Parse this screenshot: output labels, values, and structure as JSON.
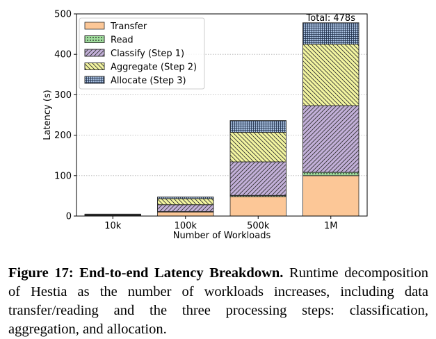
{
  "chart_data": {
    "type": "bar",
    "stacked": true,
    "categories": [
      "10k",
      "100k",
      "500k",
      "1M"
    ],
    "series": [
      {
        "name": "Transfer",
        "color": "#fcc797",
        "hatch": "none",
        "values": [
          1,
          10,
          48,
          100
        ]
      },
      {
        "name": "Read",
        "color": "#9fdc9c",
        "hatch": "dots",
        "values": [
          0.3,
          1,
          3,
          8
        ]
      },
      {
        "name": "Classify (Step 1)",
        "color": "#c3b0d9",
        "hatch": "diagonal",
        "values": [
          1.5,
          17,
          83,
          165
        ]
      },
      {
        "name": "Aggregate (Step 2)",
        "color": "#f3f5a0",
        "hatch": "backdiagonal",
        "values": [
          1.2,
          15,
          73,
          152
        ]
      },
      {
        "name": "Allocate (Step 3)",
        "color": "#a8c0e0",
        "hatch": "grid",
        "values": [
          0.8,
          4,
          29,
          53
        ]
      }
    ],
    "xlabel": "Number of Workloads",
    "ylabel": "Latency (s)",
    "ylim": [
      0,
      500
    ],
    "yticks": [
      0,
      100,
      200,
      300,
      400,
      500
    ],
    "grid": "horizontal dotted",
    "legend": "top-left",
    "annotation": "Total: 478s"
  },
  "caption": {
    "label": "Figure 17: End-to-end Latency Breakdown.",
    "text": " Runtime decomposition of Hestia as the number of workloads increases, including data transfer/reading and the three processing steps: classification, aggregation, and allocation."
  }
}
